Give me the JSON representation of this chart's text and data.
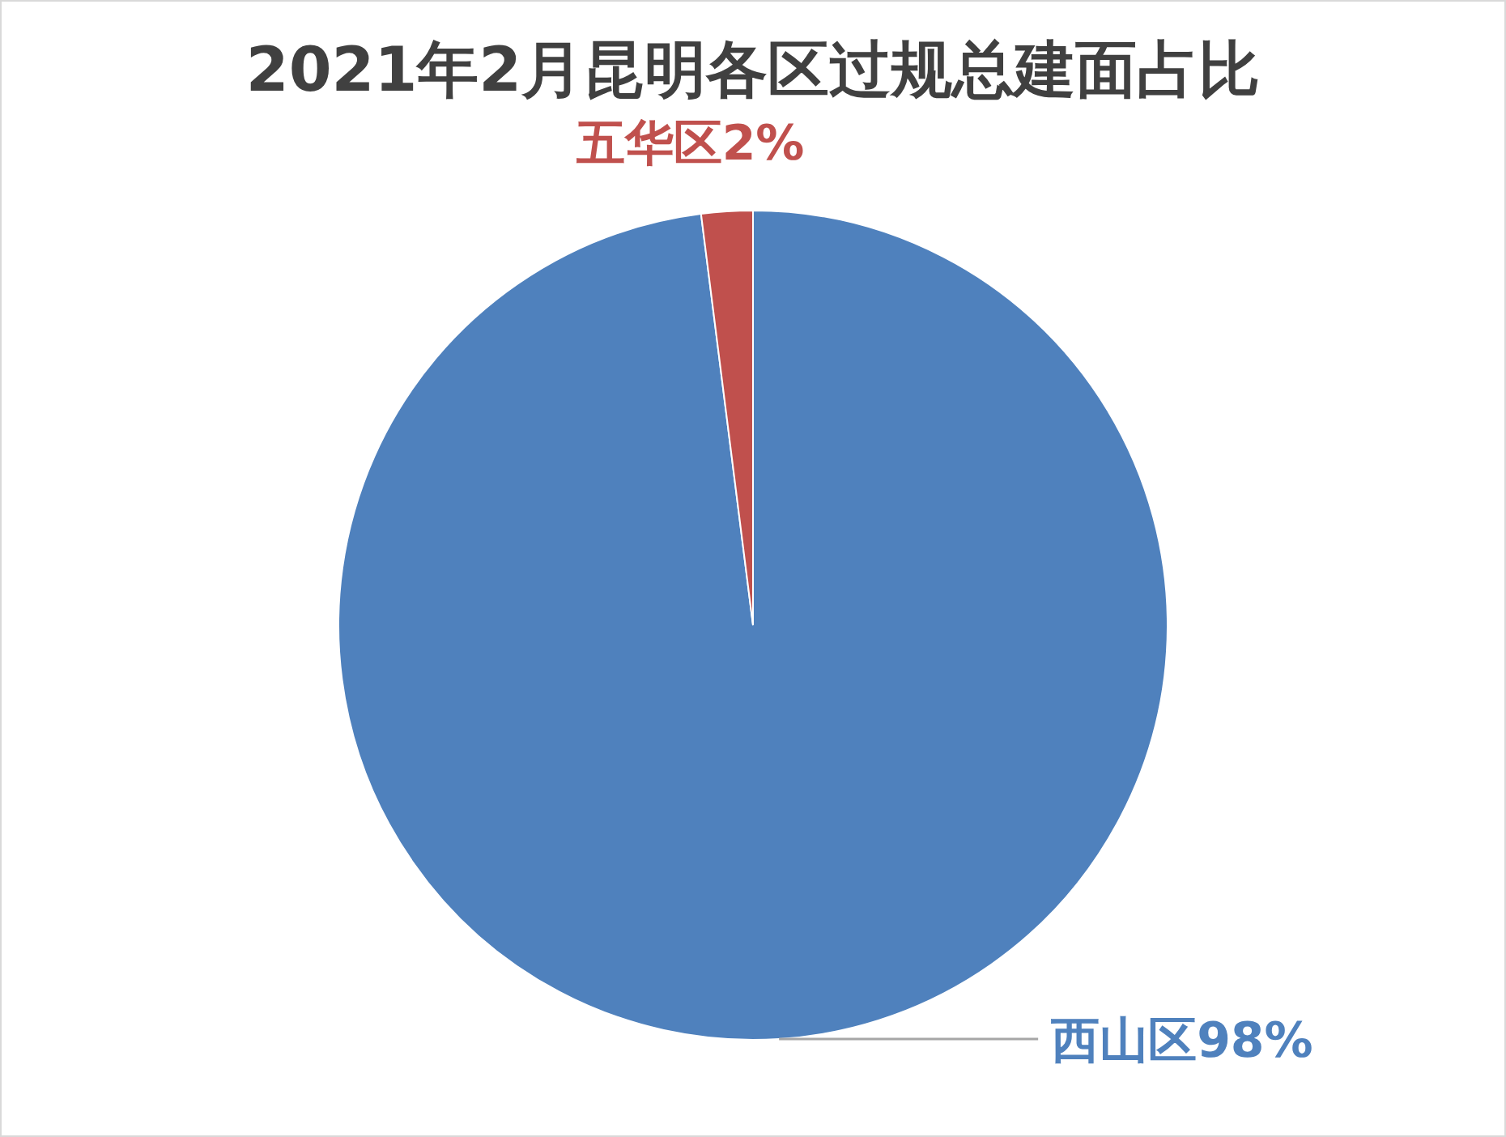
{
  "chart_data": {
    "type": "pie",
    "title": "2021年2月昆明各区过规总建面占比",
    "categories": [
      "西山区",
      "五华区"
    ],
    "values": [
      98,
      2
    ],
    "value_labels": [
      "98%",
      "2%"
    ],
    "colors": [
      "#4f81bd",
      "#c0504d"
    ]
  }
}
